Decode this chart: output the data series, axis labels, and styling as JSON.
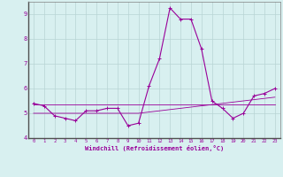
{
  "xlabel": "Windchill (Refroidissement éolien,°C)",
  "background_color": "#d8f0f0",
  "grid_color": "#b8d4d4",
  "line_color": "#990099",
  "border_color": "#808080",
  "xlim": [
    -0.5,
    23.5
  ],
  "ylim": [
    4.0,
    9.5
  ],
  "yticks": [
    4,
    5,
    6,
    7,
    8,
    9
  ],
  "xticks": [
    0,
    1,
    2,
    3,
    4,
    5,
    6,
    7,
    8,
    9,
    10,
    11,
    12,
    13,
    14,
    15,
    16,
    17,
    18,
    19,
    20,
    21,
    22,
    23
  ],
  "series_main": [
    5.4,
    5.3,
    4.9,
    4.8,
    4.7,
    5.1,
    5.1,
    5.2,
    5.2,
    4.5,
    4.6,
    6.1,
    7.2,
    9.25,
    8.8,
    8.8,
    7.6,
    5.5,
    5.2,
    4.8,
    5.0,
    5.7,
    5.8,
    6.0
  ],
  "series_flat": [
    5.35,
    5.35,
    5.35,
    5.35,
    5.35,
    5.35,
    5.35,
    5.35,
    5.35,
    5.35,
    5.35,
    5.35,
    5.35,
    5.35,
    5.35,
    5.35,
    5.35,
    5.35,
    5.35,
    5.35,
    5.35,
    5.35,
    5.35,
    5.35
  ],
  "series_rising": [
    5.0,
    5.0,
    5.0,
    5.0,
    5.0,
    5.0,
    5.0,
    5.0,
    5.0,
    5.0,
    5.0,
    5.05,
    5.1,
    5.15,
    5.2,
    5.25,
    5.3,
    5.35,
    5.4,
    5.45,
    5.5,
    5.55,
    5.6,
    5.65
  ]
}
